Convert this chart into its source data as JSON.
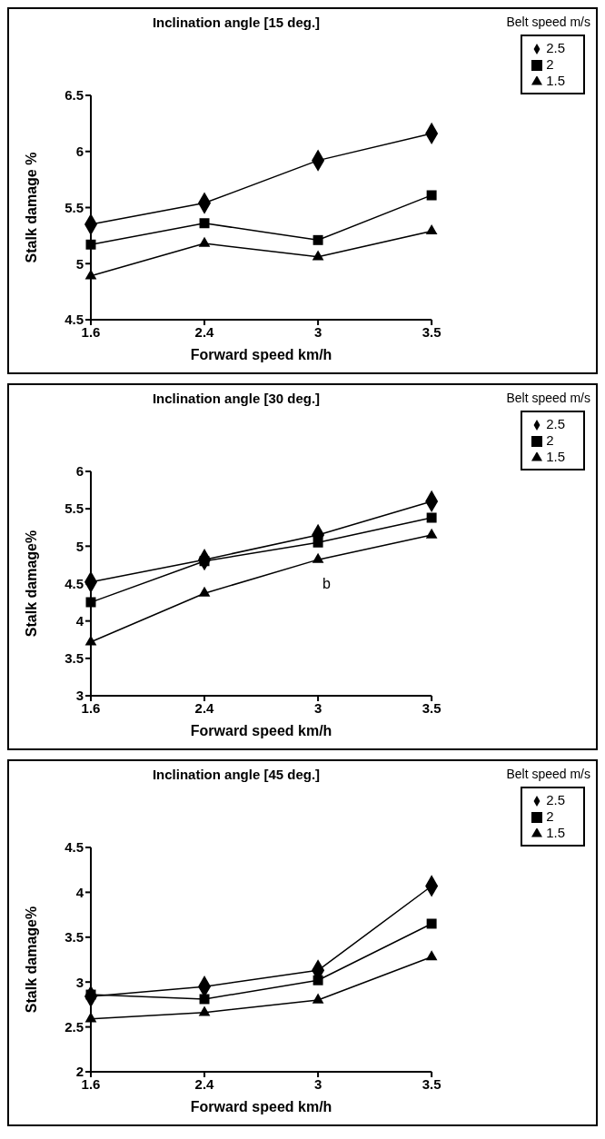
{
  "chart_data": [
    {
      "type": "line",
      "title": "Inclination angle [15 deg.]",
      "xlabel": "Forward speed km/h",
      "ylabel": "Stalk damage %",
      "legend_title": "Belt speed m/s",
      "legend": "top right",
      "categories": [
        "1.6",
        "2.4",
        "3",
        "3.5"
      ],
      "ylim": [
        4.5,
        6.5
      ],
      "yticks": [
        4.5,
        5,
        5.5,
        6,
        6.5
      ],
      "grid": false,
      "series": [
        {
          "name": "2.5",
          "color": "#000000",
          "marker": "diamond",
          "values": [
            5.35,
            5.54,
            5.92,
            6.16
          ]
        },
        {
          "name": "2",
          "color": "#000000",
          "marker": "square",
          "values": [
            5.17,
            5.36,
            5.21,
            5.61
          ]
        },
        {
          "name": "1.5",
          "color": "#000000",
          "marker": "triangle",
          "values": [
            4.89,
            5.18,
            5.06,
            5.29
          ]
        }
      ]
    },
    {
      "type": "line",
      "title": "Inclination angle [30 deg.]",
      "xlabel": "Forward speed km/h",
      "ylabel": "Stalk damage%",
      "legend_title": "Belt speed m/s",
      "legend": "top right",
      "categories": [
        "1.6",
        "2.4",
        "3",
        "3.5"
      ],
      "ylim": [
        3,
        6
      ],
      "yticks": [
        3,
        3.5,
        4,
        4.5,
        5,
        5.5,
        6
      ],
      "grid": false,
      "annotations": [
        "b"
      ],
      "series": [
        {
          "name": "2.5",
          "color": "#000000",
          "marker": "diamond",
          "values": [
            4.52,
            4.82,
            5.15,
            5.6
          ]
        },
        {
          "name": "2",
          "color": "#000000",
          "marker": "square",
          "values": [
            4.25,
            4.8,
            5.05,
            5.38
          ]
        },
        {
          "name": "1.5",
          "color": "#000000",
          "marker": "triangle",
          "values": [
            3.72,
            4.37,
            4.82,
            5.15
          ]
        }
      ]
    },
    {
      "type": "line",
      "title": "Inclination angle [45 deg.]",
      "xlabel": "Forward speed km/h",
      "ylabel": "Stalk damage%",
      "legend_title": "Belt speed m/s",
      "legend": "top right",
      "categories": [
        "1.6",
        "2.4",
        "3",
        "3.5"
      ],
      "ylim": [
        2,
        4.5
      ],
      "yticks": [
        2,
        2.5,
        3,
        3.5,
        4,
        4.5
      ],
      "grid": false,
      "series": [
        {
          "name": "2.5",
          "color": "#000000",
          "marker": "diamond",
          "values": [
            2.84,
            2.95,
            3.13,
            4.07
          ]
        },
        {
          "name": "2",
          "color": "#000000",
          "marker": "square",
          "values": [
            2.86,
            2.81,
            3.02,
            3.65
          ]
        },
        {
          "name": "1.5",
          "color": "#000000",
          "marker": "triangle",
          "values": [
            2.59,
            2.66,
            2.8,
            3.28
          ]
        }
      ]
    }
  ]
}
